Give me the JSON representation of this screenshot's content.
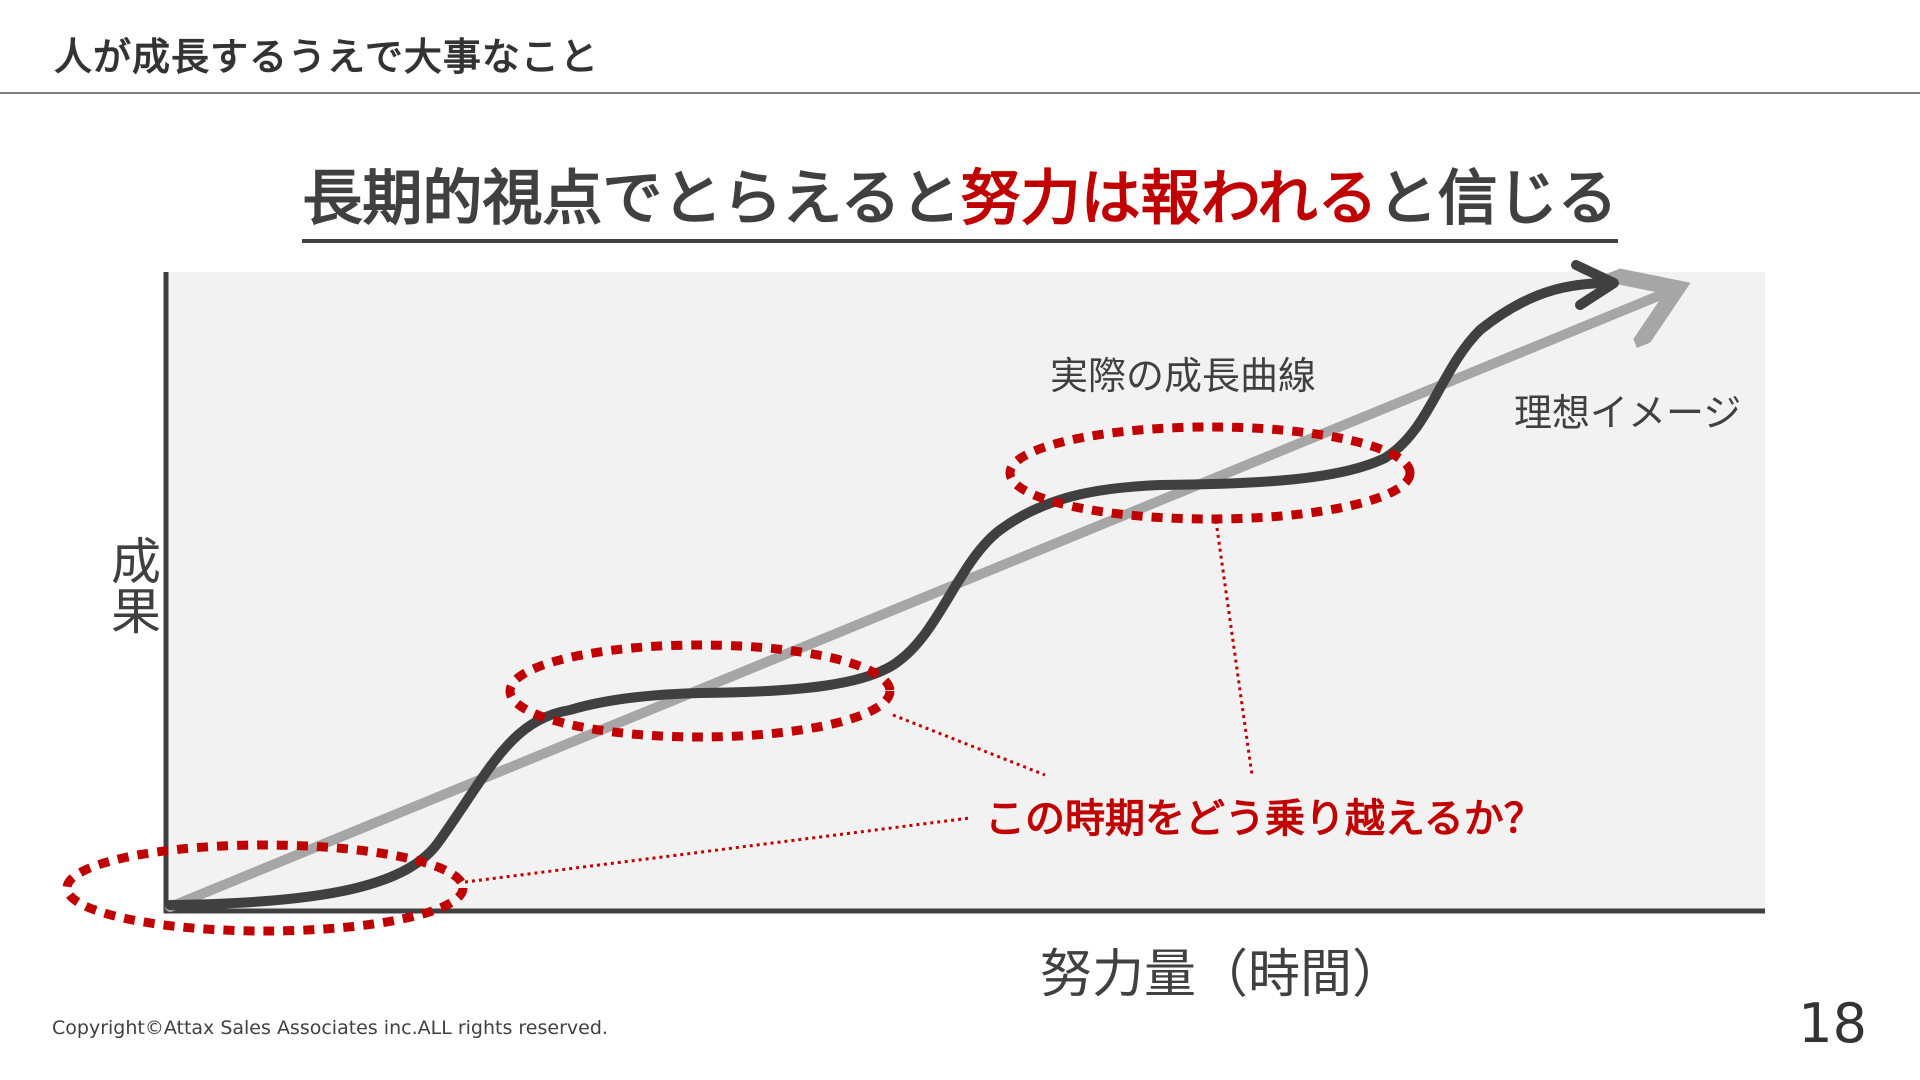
{
  "header": {
    "title": "人が成長するうえで大事なこと"
  },
  "heading": {
    "part1": "長期的視点でとらえると",
    "part2": "努力は報われる",
    "part3": "と信じる"
  },
  "diagram": {
    "y_axis_label": "成果",
    "x_axis_label": "努力量（時間）",
    "actual_curve_label": "実際の成長曲線",
    "ideal_line_label": "理想イメージ",
    "callout": "この時期をどう乗り越えるか？"
  },
  "colors": {
    "accent": "#c00000",
    "curve": "#404040",
    "ideal": "#a6a6a6",
    "plot_bg": "#f2f2f2"
  },
  "footer": {
    "copyright": "Copyright©Attax Sales Associates inc.ALL rights reserved.",
    "page_number": "18"
  }
}
